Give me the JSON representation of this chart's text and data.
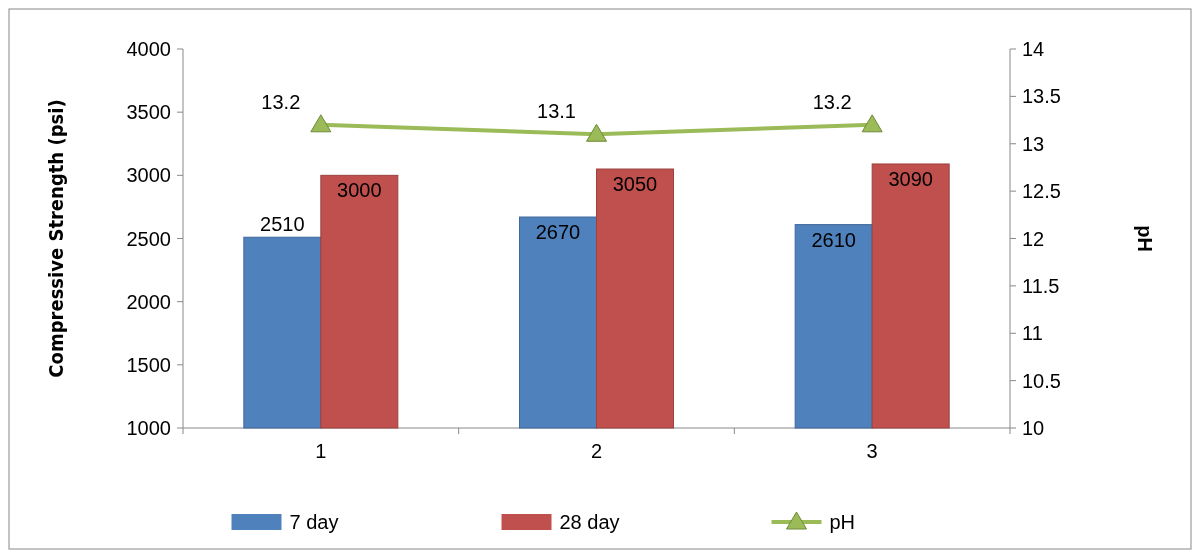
{
  "chart_data": {
    "type": "bar",
    "categories": [
      "1",
      "2",
      "3"
    ],
    "series": [
      {
        "name": "7 day",
        "color": "#4f81bd",
        "values": [
          2510,
          2670,
          2610
        ]
      },
      {
        "name": "28 day",
        "color": "#c0504d",
        "values": [
          3000,
          3050,
          3090
        ]
      },
      {
        "name": "pH",
        "type": "line",
        "axis": "y2",
        "color": "#9bbb59",
        "values": [
          13.2,
          13.1,
          13.2
        ],
        "marker": "triangle"
      }
    ],
    "ylabel": "Compressive Strength (psi)",
    "y2label": "pH",
    "ylim": [
      1000,
      4000
    ],
    "yticks": [
      1000,
      1500,
      2000,
      2500,
      3000,
      3500,
      4000
    ],
    "y2lim": [
      10,
      14
    ],
    "y2ticks": [
      10,
      10.5,
      11,
      11.5,
      12,
      12.5,
      13,
      13.5,
      14
    ],
    "data_labels": true,
    "legend": "bottom",
    "grid": false
  }
}
